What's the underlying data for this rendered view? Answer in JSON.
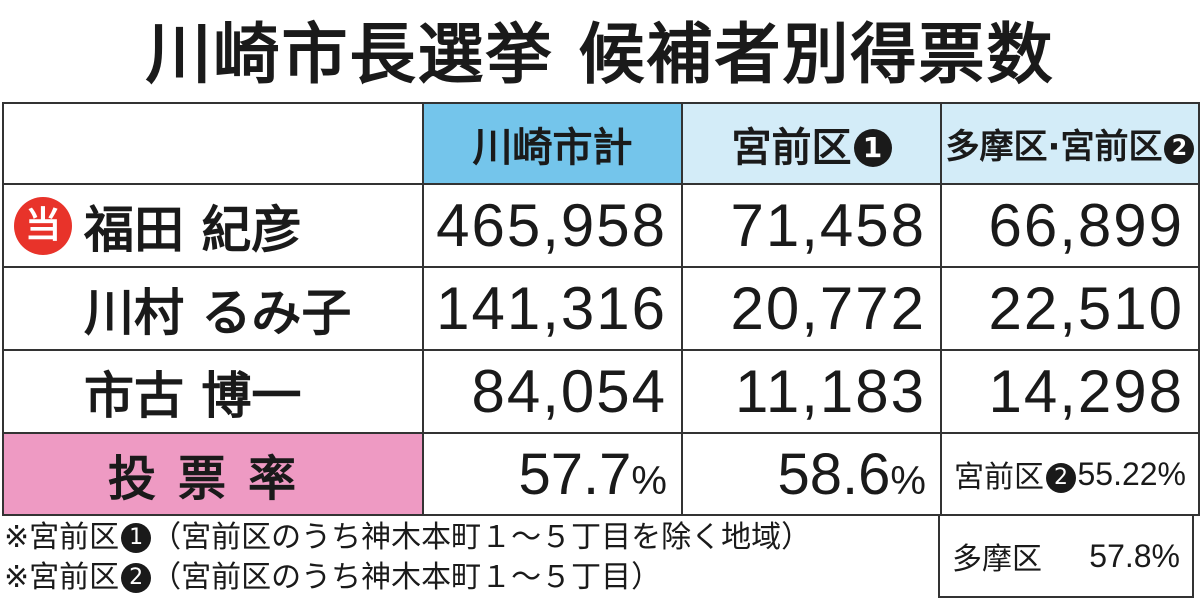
{
  "title": "川崎市長選挙 候補者別得票数",
  "headers": {
    "total": "川崎市計",
    "miyamae1": "宮前区",
    "miyamae1_mark": "1",
    "tama_miyamae2_a": "多摩区",
    "tama_miyamae2_sep": "·",
    "tama_miyamae2_b": "宮前区",
    "tama_miyamae2_mark": "2"
  },
  "winner_badge": "当",
  "candidates": [
    {
      "name": "福田 紀彦",
      "winner": true,
      "total": "465,958",
      "miyamae1": "71,458",
      "tama_miyamae2": "66,899"
    },
    {
      "name": "川村 るみ子",
      "winner": false,
      "total": "141,316",
      "miyamae1": "20,772",
      "tama_miyamae2": "22,510"
    },
    {
      "name": "市古 博一",
      "winner": false,
      "total": "84,054",
      "miyamae1": "11,183",
      "tama_miyamae2": "14,298"
    }
  ],
  "turnout": {
    "label": "投票率",
    "total_value": "57.7",
    "miyamae1_value": "58.6",
    "percent_sign": "%",
    "miyamae2_label": "宮前区",
    "miyamae2_mark": "2",
    "miyamae2_value": "55.22%",
    "tama_label": "多摩区",
    "tama_value": "57.8%"
  },
  "notes": [
    {
      "prefix": "※宮前区",
      "mark": "1",
      "text": "（宮前区のうち神木本町１～５丁目を除く地域）"
    },
    {
      "prefix": "※宮前区",
      "mark": "2",
      "text": "（宮前区のうち神木本町１～５丁目）"
    }
  ]
}
